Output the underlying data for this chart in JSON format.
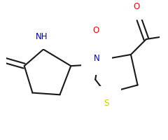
{
  "bg_color": "#ffffff",
  "bond_color": "#1a1a1a",
  "atom_colors": {
    "O": "#ff0000",
    "N": "#0000cc",
    "S": "#cccc00",
    "H": "#000000"
  },
  "bond_width": 1.5,
  "dbo": 0.008,
  "figsize": [
    2.4,
    2.0
  ],
  "dpi": 100,
  "xlim": [
    0,
    240
  ],
  "ylim": [
    0,
    200
  ]
}
